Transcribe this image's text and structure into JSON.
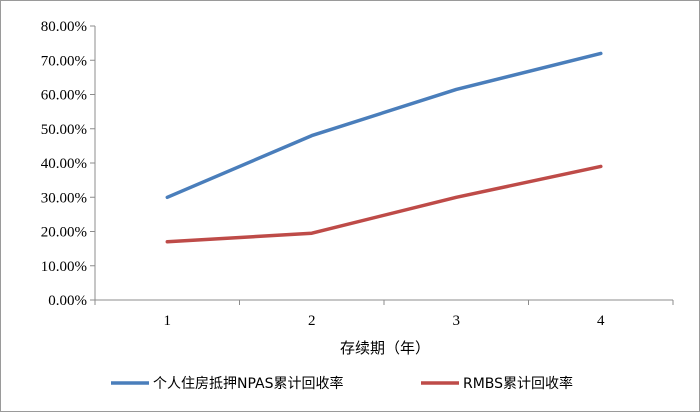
{
  "chart_data": {
    "type": "line",
    "x": [
      1,
      2,
      3,
      4
    ],
    "series": [
      {
        "name": "个人住房抵押NPAS累计回收率",
        "values": [
          30.0,
          48.0,
          61.5,
          72.0
        ],
        "color": "#4a7ebb"
      },
      {
        "name": "RMBS累计回收率",
        "values": [
          17.0,
          19.5,
          30.0,
          39.0
        ],
        "color": "#be4b48"
      }
    ],
    "xlabel": "存续期（年）",
    "ylabel": "",
    "ylim": [
      0,
      80
    ],
    "yticks": [
      "0.00%",
      "10.00%",
      "20.00%",
      "30.00%",
      "40.00%",
      "50.00%",
      "60.00%",
      "70.00%",
      "80.00%"
    ],
    "xticks": [
      "1",
      "2",
      "3",
      "4"
    ],
    "grid": false,
    "legend_position": "bottom"
  }
}
